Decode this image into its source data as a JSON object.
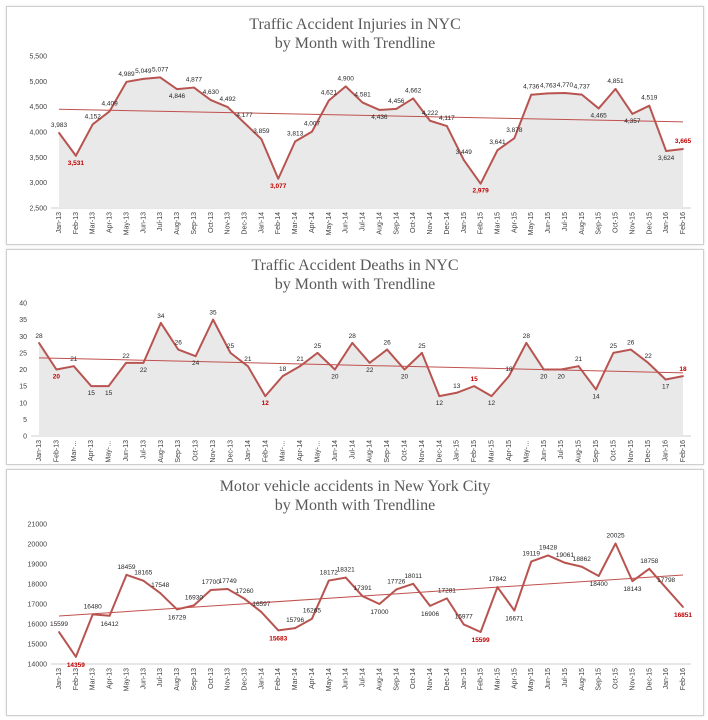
{
  "chart_data": [
    {
      "type": "line",
      "title": "Traffic Accident Injuries in NYC",
      "subtitle": "by Month with  Trendline",
      "ylim": [
        2500,
        5500
      ],
      "yticks": [
        "2,500",
        "3,000",
        "3,500",
        "4,000",
        "4,500",
        "5,000",
        "5,500"
      ],
      "ytick_values": [
        2500,
        3000,
        3500,
        4000,
        4500,
        5000,
        5500
      ],
      "trendline": [
        4450,
        4200
      ],
      "grid": false,
      "area_fill": true,
      "colors": {
        "line": "#b85450",
        "trend": "#c0504d",
        "area": "#e9e9e9",
        "highlight": "#c00000"
      },
      "x": [
        "Jan-13",
        "Feb-13",
        "Mar-13",
        "Apr-13",
        "May-13",
        "Jun-13",
        "Jul-13",
        "Aug-13",
        "Sep-13",
        "Oct-13",
        "Nov-13",
        "Dec-13",
        "Jan-14",
        "Feb-14",
        "Mar-14",
        "Apr-14",
        "May-14",
        "Jun-14",
        "Jul-14",
        "Aug-14",
        "Sep-14",
        "Oct-14",
        "Nov-14",
        "Dec-14",
        "Jan-15",
        "Feb-15",
        "Mar-15",
        "Apr-15",
        "May-15",
        "Jun-15",
        "Jul-15",
        "Aug-15",
        "Sep-15",
        "Oct-15",
        "Nov-15",
        "Dec-15",
        "Jan-16",
        "Feb-16"
      ],
      "values": [
        3983,
        3531,
        4152,
        4409,
        4989,
        5049,
        5077,
        4846,
        4877,
        4630,
        4492,
        4177,
        3859,
        3077,
        3813,
        4007,
        4621,
        4900,
        4581,
        4436,
        4456,
        4662,
        4222,
        4117,
        3449,
        2979,
        3641,
        3878,
        4736,
        4763,
        4770,
        4737,
        4465,
        4851,
        4357,
        4519,
        3624,
        3665
      ],
      "labels": [
        "3,983",
        "3,531",
        "4,152",
        "4,409",
        "4,989",
        "5,049",
        "5,077",
        "4,846",
        "4,877",
        "4,630",
        "4,492",
        "4,177",
        "3,859",
        "3,077",
        "3,813",
        "4,007",
        "4,621",
        "4,900",
        "4,581",
        "4,436",
        "4,456",
        "4,662",
        "4,222",
        "4,117",
        "3,449",
        "2,979",
        "3,641",
        "3,878",
        "4,736",
        "4,763",
        "4,770",
        "4,737",
        "4,465",
        "4,851",
        "4,357",
        "4,519",
        "3,624",
        "3,665"
      ],
      "highlight": [
        1,
        13,
        25,
        37
      ]
    },
    {
      "type": "line",
      "title": "Traffic Accident Deaths in NYC",
      "subtitle": "by Month with  Trendline",
      "ylim": [
        0,
        40
      ],
      "yticks": [
        "0",
        "5",
        "10",
        "15",
        "20",
        "25",
        "30",
        "35",
        "40"
      ],
      "ytick_values": [
        0,
        5,
        10,
        15,
        20,
        25,
        30,
        35,
        40
      ],
      "trendline": [
        23.5,
        19
      ],
      "grid": false,
      "area_fill": true,
      "colors": {
        "line": "#b85450",
        "trend": "#c0504d",
        "area": "#e9e9e9",
        "highlight": "#c00000"
      },
      "x": [
        "Jan-13",
        "Feb-13",
        "Mar-…",
        "Apr-13",
        "May-…",
        "Jun-13",
        "Jul-13",
        "Aug-13",
        "Sep-13",
        "Oct-13",
        "Nov-13",
        "Dec-13",
        "Jan-14",
        "Feb-14",
        "Mar-…",
        "Apr-14",
        "May-…",
        "Jun-14",
        "Jul-14",
        "Aug-14",
        "Sep-14",
        "Oct-14",
        "Nov-14",
        "Dec-14",
        "Jan-15",
        "Feb-15",
        "Mar-15",
        "Apr-15",
        "May-…",
        "Jun-15",
        "Jul-15",
        "Aug-15",
        "Sep-15",
        "Oct-15",
        "Nov-15",
        "Dec-15",
        "Jan-16",
        "Feb-16"
      ],
      "values": [
        28,
        20,
        21,
        15,
        15,
        22,
        22,
        34,
        26,
        24,
        35,
        25,
        21,
        12,
        18,
        21,
        25,
        20,
        28,
        22,
        26,
        20,
        25,
        12,
        13,
        15,
        12,
        18,
        28,
        20,
        20,
        21,
        14,
        25,
        26,
        22,
        17,
        18
      ],
      "labels": [
        "28",
        "20",
        "21",
        "15",
        "15",
        "22",
        "22",
        "34",
        "26",
        "24",
        "35",
        "25",
        "21",
        "12",
        "18",
        "21",
        "25",
        "20",
        "28",
        "22",
        "26",
        "20",
        "25",
        "12",
        "13",
        "15",
        "12",
        "18",
        "28",
        "20",
        "20",
        "21",
        "14",
        "25",
        "26",
        "22",
        "17",
        "18"
      ],
      "highlight": [
        1,
        13,
        25,
        37
      ]
    },
    {
      "type": "line",
      "title": "Motor vehicle accidents in New York City",
      "subtitle": "by Month with Trendline",
      "ylim": [
        14000,
        21000
      ],
      "yticks": [
        "14000",
        "15000",
        "16000",
        "17000",
        "18000",
        "19000",
        "20000",
        "21000"
      ],
      "ytick_values": [
        14000,
        15000,
        16000,
        17000,
        18000,
        19000,
        20000,
        21000
      ],
      "trendline": [
        16400,
        18450
      ],
      "grid": false,
      "area_fill": false,
      "colors": {
        "line": "#b85450",
        "trend": "#c0504d",
        "highlight": "#c00000"
      },
      "x": [
        "Jan-13",
        "Feb-13",
        "Mar-13",
        "Apr-13",
        "May-13",
        "Jun-13",
        "Jul-13",
        "Aug-13",
        "Sep-13",
        "Oct-13",
        "Nov-13",
        "Dec-13",
        "Jan-14",
        "Feb-14",
        "Mar-14",
        "Apr-14",
        "May-14",
        "Jun-14",
        "Jul-14",
        "Aug-14",
        "Sep-14",
        "Oct-14",
        "Nov-14",
        "Dec-14",
        "Jan-15",
        "Feb-15",
        "Mar-15",
        "Apr-15",
        "May-15",
        "Jun-15",
        "Jul-15",
        "Aug-15",
        "Sep-15",
        "Oct-15",
        "Nov-15",
        "Dec-15",
        "Jan-16",
        "Feb-16"
      ],
      "values": [
        15599,
        14359,
        16480,
        16412,
        18459,
        18165,
        17548,
        16729,
        16930,
        17700,
        17749,
        17260,
        16597,
        15683,
        15796,
        16265,
        18172,
        18321,
        17391,
        17000,
        17726,
        18011,
        16906,
        17281,
        15977,
        15599,
        17842,
        16671,
        19119,
        19428,
        19061,
        18862,
        18400,
        20025,
        18143,
        18758,
        17798,
        16851
      ],
      "labels": [
        "15599",
        "14359",
        "16480",
        "16412",
        "18459",
        "18165",
        "17548",
        "16729",
        "16930",
        "17700",
        "17749",
        "17260",
        "16597",
        "15683",
        "15796",
        "16265",
        "18172",
        "18321",
        "17391",
        "17000",
        "17726",
        "18011",
        "16906",
        "17281",
        "15977",
        "15599",
        "17842",
        "16671",
        "19119",
        "19428",
        "19061",
        "18862",
        "18400",
        "20025",
        "18143",
        "18758",
        "17798",
        "16851"
      ],
      "highlight": [
        1,
        13,
        25,
        37
      ]
    }
  ]
}
